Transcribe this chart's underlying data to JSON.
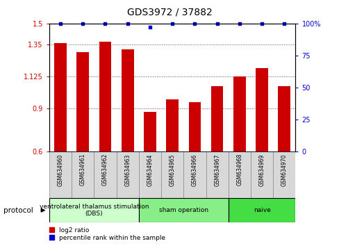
{
  "title": "GDS3972 / 37882",
  "samples": [
    "GSM634960",
    "GSM634961",
    "GSM634962",
    "GSM634963",
    "GSM634964",
    "GSM634965",
    "GSM634966",
    "GSM634967",
    "GSM634968",
    "GSM634969",
    "GSM634970"
  ],
  "log2_ratio": [
    1.36,
    1.3,
    1.37,
    1.315,
    0.875,
    0.965,
    0.945,
    1.06,
    1.125,
    1.185,
    1.06
  ],
  "percentile_rank": [
    100,
    100,
    100,
    100,
    97,
    100,
    100,
    100,
    100,
    100,
    100
  ],
  "ylim_left": [
    0.6,
    1.5
  ],
  "ylim_right": [
    0,
    100
  ],
  "yticks_left": [
    0.6,
    0.9,
    1.125,
    1.35,
    1.5
  ],
  "ytick_labels_left": [
    "0.6",
    "0.9",
    "1.125",
    "1.35",
    "1.5"
  ],
  "yticks_right": [
    0,
    25,
    50,
    75,
    100
  ],
  "ytick_labels_right": [
    "0",
    "25",
    "50",
    "75",
    "100%"
  ],
  "bar_color": "#cc0000",
  "dot_color": "#0000cc",
  "bar_width": 0.55,
  "groups": [
    {
      "label": "ventrolateral thalamus stimulation\n(DBS)",
      "indices": [
        0,
        1,
        2,
        3
      ],
      "color": "#ccffcc"
    },
    {
      "label": "sham operation",
      "indices": [
        4,
        5,
        6,
        7
      ],
      "color": "#88ee88"
    },
    {
      "label": "naive",
      "indices": [
        8,
        9,
        10
      ],
      "color": "#44dd44"
    }
  ],
  "protocol_label": "protocol",
  "legend_items": [
    {
      "color": "#cc0000",
      "label": "log2 ratio"
    },
    {
      "color": "#0000cc",
      "label": "percentile rank within the sample"
    }
  ],
  "background_color": "#ffffff",
  "plot_bg_color": "#ffffff",
  "grid_color": "#555555",
  "title_fontsize": 10,
  "tick_fontsize": 7,
  "sample_fontsize": 5.5,
  "legend_fontsize": 6.5,
  "proto_fontsize": 6.5
}
